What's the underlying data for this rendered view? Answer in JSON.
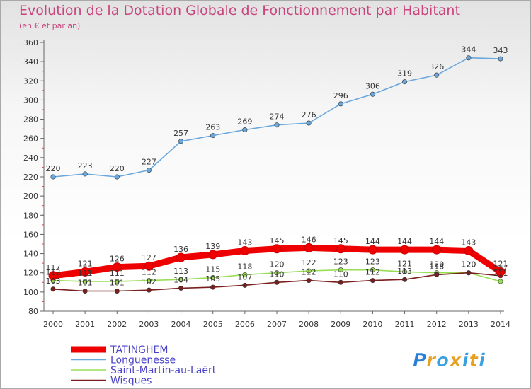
{
  "header": {
    "title": "Evolution de la Dotation Globale de Fonctionnement par Habitant",
    "subtitle": "(en € et par an)"
  },
  "chart_data": {
    "type": "line",
    "title": "Evolution de la Dotation Globale de Fonctionnement par Habitant",
    "subtitle": "(en € et par an)",
    "xlabel": "",
    "ylabel": "",
    "ylim": [
      80,
      360
    ],
    "ytick_step": 20,
    "grid": false,
    "legend_placement": "bottom-left",
    "categories": [
      "2000",
      "2001",
      "2002",
      "2003",
      "2004",
      "2005",
      "2006",
      "2007",
      "2008",
      "2009",
      "2010",
      "2011",
      "2012",
      "2013",
      "2014"
    ],
    "series": [
      {
        "name": "TATINGHEM",
        "color": "#ee0000",
        "bold": true,
        "values": [
          117,
          121,
          126,
          127,
          136,
          139,
          143,
          145,
          146,
          145,
          144,
          144,
          144,
          143,
          121
        ]
      },
      {
        "name": "Longuenesse",
        "color": "#6aa7dd",
        "values": [
          220,
          223,
          220,
          227,
          257,
          263,
          269,
          274,
          276,
          296,
          306,
          319,
          326,
          344,
          343
        ]
      },
      {
        "name": "Saint-Martin-au-Laërt",
        "color": "#99dd55",
        "values": [
          112,
          111,
          111,
          112,
          113,
          115,
          118,
          120,
          122,
          123,
          123,
          121,
          120,
          120,
          111
        ]
      },
      {
        "name": "Wisques",
        "color": "#7a1e1e",
        "values": [
          103,
          101,
          101,
          102,
          104,
          105,
          107,
          110,
          112,
          110,
          112,
          113,
          118,
          120,
          117
        ]
      }
    ]
  },
  "branding": {
    "logo_text": "Proxiti"
  }
}
